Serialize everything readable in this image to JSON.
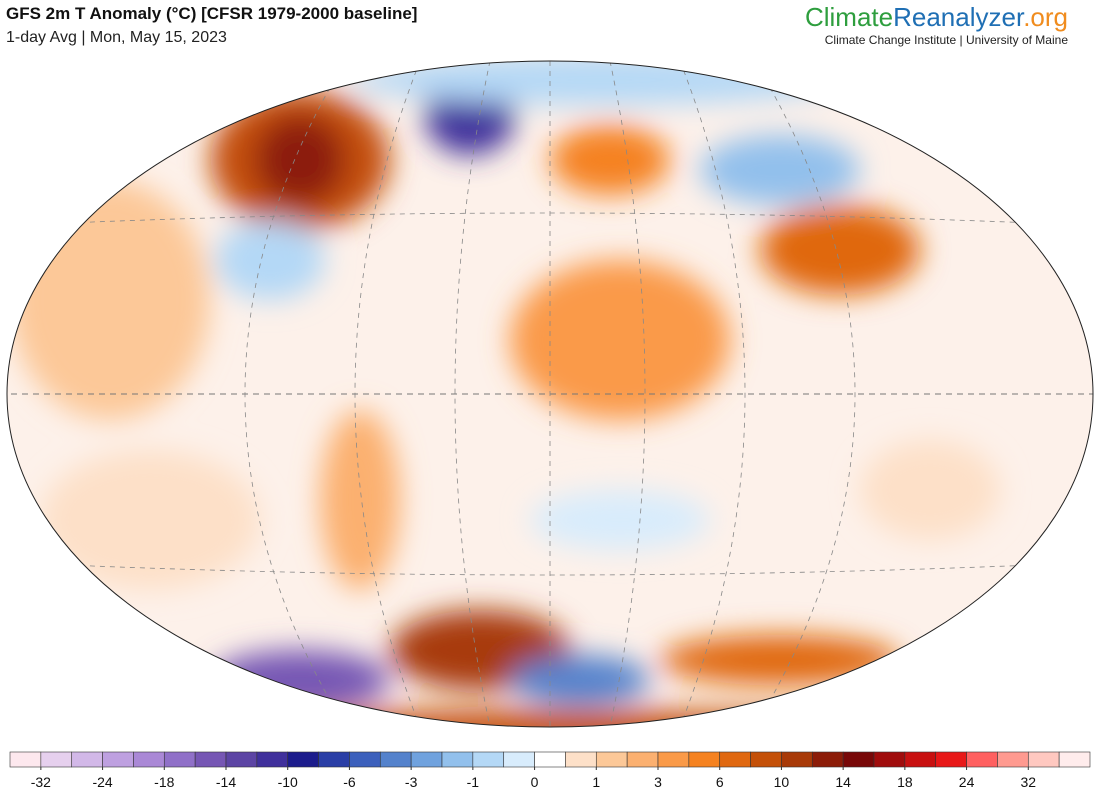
{
  "header": {
    "title": "GFS 2m T Anomaly (°C) [CFSR 1979-2000 baseline]",
    "subtitle": "1-day Avg | Mon, May 15, 2023"
  },
  "brand": {
    "name_parts": [
      {
        "text": "Climate",
        "color": "#2e9e3e"
      },
      {
        "text": "Reanalyzer",
        "color": "#1f6fb4"
      },
      {
        "text": ".org",
        "color": "#f08c1e"
      }
    ],
    "tagline": "Climate Change Institute | University of Maine"
  },
  "colorbar": {
    "colors": [
      "#fde8ee",
      "#e6d0ee",
      "#d2b8e8",
      "#bea0e0",
      "#aa88d6",
      "#9070c8",
      "#7656b4",
      "#5c44a4",
      "#40309c",
      "#1c1c8c",
      "#2a3ea6",
      "#3c60bc",
      "#5482cc",
      "#70a2de",
      "#92c0ec",
      "#b4d8f6",
      "#d8ecfc",
      "#ffffff",
      "#fde0c8",
      "#fcc898",
      "#fbb070",
      "#fa9a48",
      "#f58220",
      "#e06810",
      "#c45008",
      "#a83a08",
      "#8c1c08",
      "#780808",
      "#a00c0c",
      "#c81010",
      "#e81818",
      "#ff6060",
      "#ff9a90",
      "#ffc8c0",
      "#ffecec"
    ],
    "ticks": [
      -32,
      -24,
      -18,
      -14,
      -10,
      -6,
      -3,
      -1,
      0,
      1,
      3,
      6,
      10,
      14,
      18,
      24,
      32
    ]
  }
}
